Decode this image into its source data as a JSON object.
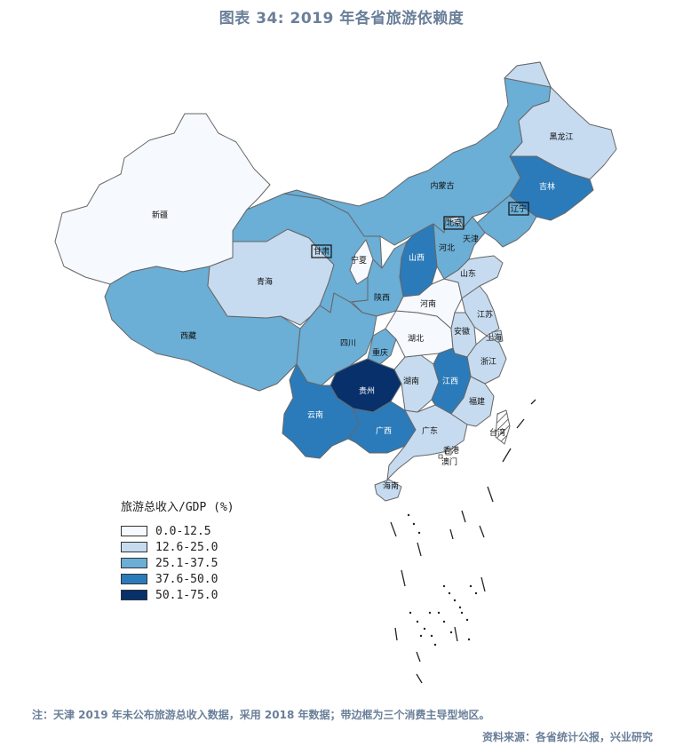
{
  "title": "图表 34: 2019 年各省旅游依赖度",
  "legend": {
    "title": "旅游总收入/GDP (%)",
    "classes": [
      {
        "label": "0.0-12.5",
        "color": "#f6f9fe"
      },
      {
        "label": "12.6-25.0",
        "color": "#c6dbef"
      },
      {
        "label": "25.1-37.5",
        "color": "#6baed6"
      },
      {
        "label": "37.6-50.0",
        "color": "#2b7bba"
      },
      {
        "label": "50.1-75.0",
        "color": "#08306b"
      }
    ]
  },
  "provinces": [
    {
      "name": "新疆",
      "class": 0
    },
    {
      "name": "西藏",
      "class": 2
    },
    {
      "name": "青海",
      "class": 1
    },
    {
      "name": "甘肃",
      "class": 2,
      "boxed": true
    },
    {
      "name": "内蒙古",
      "class": 2
    },
    {
      "name": "黑龙江",
      "class": 1
    },
    {
      "name": "吉林",
      "class": 3
    },
    {
      "name": "辽宁",
      "class": 2,
      "boxed": true
    },
    {
      "name": "北京",
      "class": 1,
      "boxed": true
    },
    {
      "name": "天津",
      "class": 1
    },
    {
      "name": "河北",
      "class": 2
    },
    {
      "name": "山西",
      "class": 3
    },
    {
      "name": "宁夏",
      "class": 0
    },
    {
      "name": "陕西",
      "class": 2
    },
    {
      "name": "四川",
      "class": 2
    },
    {
      "name": "重庆",
      "class": 2
    },
    {
      "name": "云南",
      "class": 3
    },
    {
      "name": "贵州",
      "class": 4
    },
    {
      "name": "广西",
      "class": 3
    },
    {
      "name": "广东",
      "class": 1
    },
    {
      "name": "海南",
      "class": 1
    },
    {
      "name": "湖南",
      "class": 1
    },
    {
      "name": "湖北",
      "class": 0
    },
    {
      "name": "河南",
      "class": 0
    },
    {
      "name": "山东",
      "class": 1
    },
    {
      "name": "江苏",
      "class": 1
    },
    {
      "name": "安徽",
      "class": 1
    },
    {
      "name": "上海",
      "class": 1
    },
    {
      "name": "浙江",
      "class": 1
    },
    {
      "name": "江西",
      "class": 3
    },
    {
      "name": "福建",
      "class": 1
    },
    {
      "name": "台湾",
      "class": null
    },
    {
      "name": "香港",
      "class": null
    },
    {
      "name": "澳门",
      "class": null
    }
  ],
  "note": "注：天津 2019 年未公布旅游总收入数据，采用 2018 年数据；带边框为三个消费主导型地区。",
  "source": "资料来源：各省统计公报，兴业研究"
}
